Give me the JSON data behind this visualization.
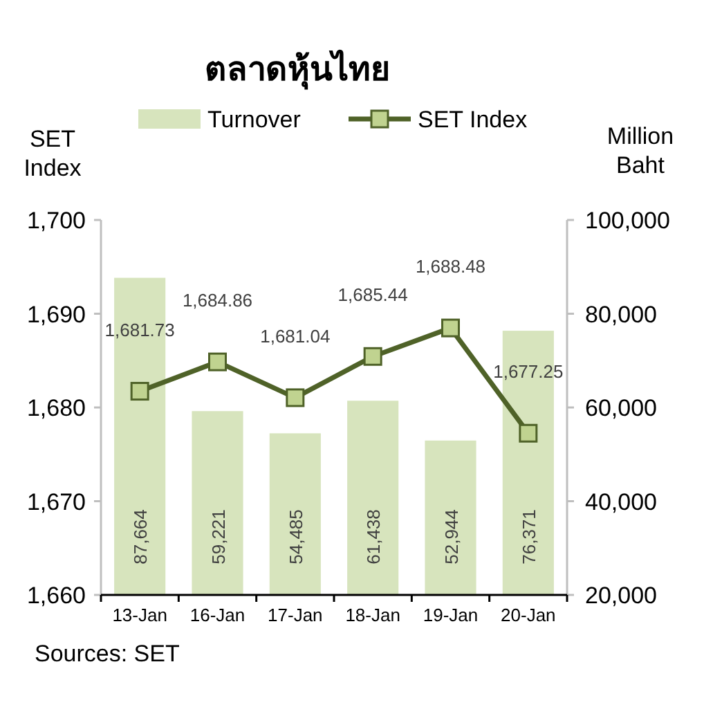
{
  "chart_data": {
    "type": "bar",
    "title": "ตลาดหุ้นไทย",
    "ylabel": "SET Index",
    "y2label": "Million Baht",
    "categories": [
      "13-Jan",
      "16-Jan",
      "17-Jan",
      "18-Jan",
      "19-Jan",
      "20-Jan"
    ],
    "series": [
      {
        "name": "Turnover",
        "axis": "y2",
        "color": "#d7e4bd",
        "values": [
          87664,
          59221,
          54485,
          61438,
          52944,
          76371
        ],
        "value_labels": [
          "87,664",
          "59,221",
          "54,485",
          "61,438",
          "52,944",
          "76,371"
        ]
      },
      {
        "name": "SET Index",
        "type": "line",
        "color": "#4f6228",
        "values": [
          1681.73,
          1684.86,
          1681.04,
          1685.44,
          1688.48,
          1677.25
        ],
        "value_labels": [
          "1,681.73",
          "1,684.86",
          "1,681.04",
          "1,685.44",
          "1,688.48",
          "1,677.25"
        ]
      }
    ],
    "marker": "square",
    "legend": "top",
    "ylim": [
      1660,
      1700
    ],
    "yticks": [
      {
        "value": 1660,
        "label": "1,660"
      },
      {
        "value": 1670,
        "label": "1,670"
      },
      {
        "value": 1680,
        "label": "1,680"
      },
      {
        "value": 1690,
        "label": "1,690"
      },
      {
        "value": 1700,
        "label": "1,700"
      }
    ],
    "y2lim": [
      20000,
      100000
    ],
    "y2ticks": [
      {
        "value": 20000,
        "label": "20,000"
      },
      {
        "value": 40000,
        "label": "40,000"
      },
      {
        "value": 60000,
        "label": "60,000"
      },
      {
        "value": 80000,
        "label": "80,000"
      },
      {
        "value": 100000,
        "label": "100,000"
      }
    ],
    "annotations": [
      "Sources: SET"
    ]
  }
}
